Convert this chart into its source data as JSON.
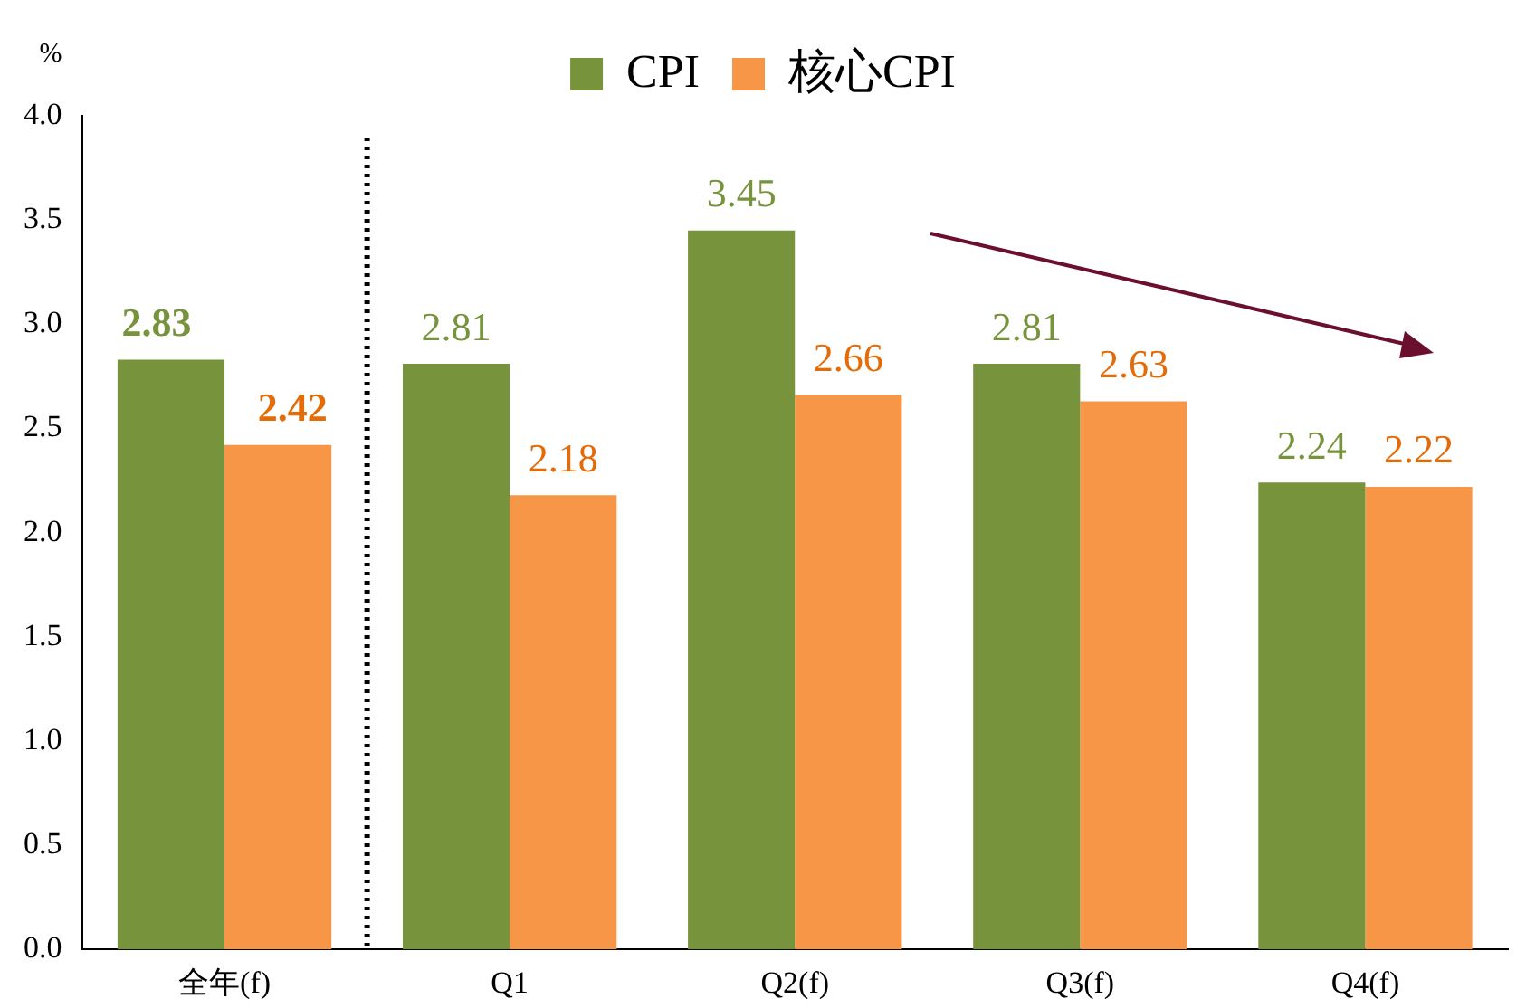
{
  "chart_data": {
    "type": "bar",
    "ylabel": "%",
    "categories": [
      "全年(f)",
      "Q1",
      "Q2(f)",
      "Q3(f)",
      "Q4(f)"
    ],
    "series": [
      {
        "name": "CPI",
        "color": "#77933c",
        "values": [
          2.83,
          2.81,
          3.45,
          2.81,
          2.24
        ]
      },
      {
        "name": "核心CPI",
        "color": "#f79646",
        "values": [
          2.42,
          2.18,
          2.66,
          2.63,
          2.22
        ]
      }
    ],
    "ylim": [
      0,
      4
    ],
    "yticks": [
      {
        "value": 0,
        "label": "0.0"
      },
      {
        "value": 0.5,
        "label": "0.5"
      },
      {
        "value": 1,
        "label": "1.0"
      },
      {
        "value": 1.5,
        "label": "1.5"
      },
      {
        "value": 2,
        "label": "2.0"
      },
      {
        "value": 2.5,
        "label": "2.5"
      },
      {
        "value": 3,
        "label": "3.0"
      },
      {
        "value": 3.5,
        "label": "3.5"
      },
      {
        "value": 4,
        "label": "4.0"
      }
    ],
    "data_labels": true,
    "legend": "top",
    "grid": false
  }
}
